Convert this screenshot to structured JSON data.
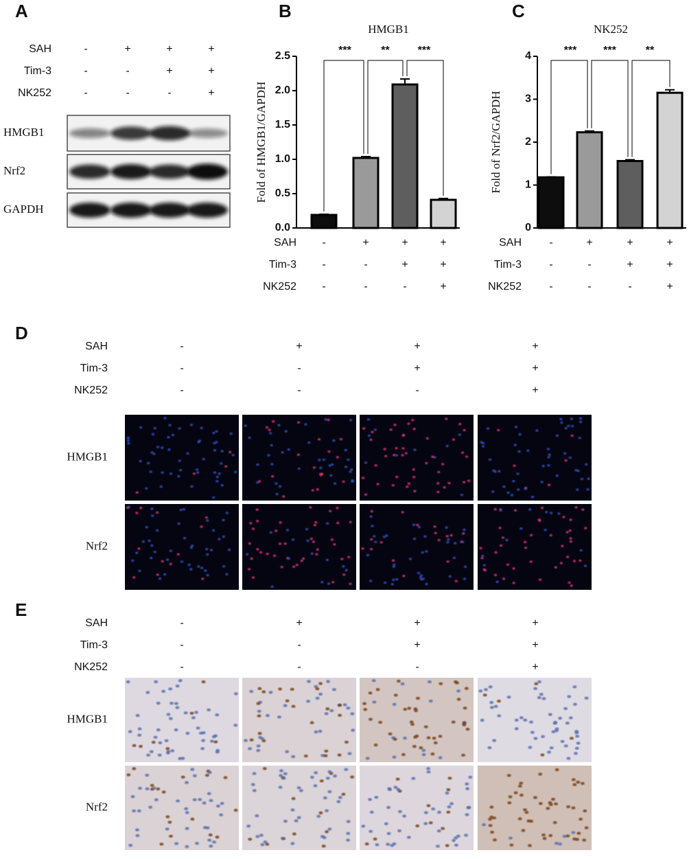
{
  "panel_a": {
    "label": "A",
    "conditions": [
      {
        "name": "SAH",
        "signs": [
          "-",
          "+",
          "+",
          "+"
        ]
      },
      {
        "name": "Tim-3",
        "signs": [
          "-",
          "-",
          "+",
          "+"
        ]
      },
      {
        "name": "NK252",
        "signs": [
          "-",
          "-",
          "-",
          "+"
        ]
      }
    ],
    "bands": [
      "HMGB1",
      "Nrf2",
      "GAPDH"
    ]
  },
  "chart_data": [
    {
      "type": "bar",
      "panel_label": "B",
      "title": "HMGB1",
      "y_label": "Fold of HMGB1/GAPDH",
      "values": [
        0.19,
        1.02,
        2.09,
        0.41
      ],
      "errors": [
        0.01,
        0.02,
        0.08,
        0.02
      ],
      "colors": [
        "#0d0d0d",
        "#9a9a9a",
        "#5e5e5e",
        "#d3d3d3"
      ],
      "ylim": [
        0,
        2.5
      ],
      "yticks": [
        {
          "value": 0,
          "label": "0.0"
        },
        0.5,
        {
          "value": 1,
          "label": "1.0"
        },
        1.5,
        {
          "value": 2,
          "label": "2.0"
        },
        2.5
      ],
      "significance": [
        "***",
        "**",
        "***"
      ],
      "conditions": [
        {
          "name": "SAH",
          "signs": [
            "-",
            "+",
            "+",
            "+"
          ]
        },
        {
          "name": "Tim-3",
          "signs": [
            "-",
            "-",
            "+",
            "+"
          ]
        },
        {
          "name": "NK252",
          "signs": [
            "-",
            "-",
            "-",
            "+"
          ]
        }
      ]
    },
    {
      "type": "bar",
      "panel_label": "C",
      "title": "NK252",
      "y_label": "Fold of Nrf2/GAPDH",
      "values": [
        1.18,
        2.23,
        1.56,
        3.15
      ],
      "errors": [
        0.01,
        0.03,
        0.03,
        0.07
      ],
      "colors": [
        "#0d0d0d",
        "#9a9a9a",
        "#5e5e5e",
        "#d3d3d3"
      ],
      "ylim": [
        0,
        4
      ],
      "yticks": [
        0,
        1,
        2,
        3,
        4
      ],
      "significance": [
        "***",
        "***",
        "**"
      ],
      "conditions": [
        {
          "name": "SAH",
          "signs": [
            "-",
            "+",
            "+",
            "+"
          ]
        },
        {
          "name": "Tim-3",
          "signs": [
            "-",
            "-",
            "+",
            "+"
          ]
        },
        {
          "name": "NK252",
          "signs": [
            "-",
            "-",
            "-",
            "+"
          ]
        }
      ]
    }
  ],
  "panel_d": {
    "label": "D",
    "conditions": [
      {
        "name": "SAH",
        "signs": [
          "-",
          "+",
          "+",
          "+"
        ]
      },
      {
        "name": "Tim-3",
        "signs": [
          "-",
          "-",
          "+",
          "+"
        ]
      },
      {
        "name": "NK252",
        "signs": [
          "-",
          "-",
          "-",
          "+"
        ]
      }
    ],
    "rows": [
      "HMGB1",
      "Nrf2"
    ]
  },
  "panel_e": {
    "label": "E",
    "conditions": [
      {
        "name": "SAH",
        "signs": [
          "-",
          "+",
          "+",
          "+"
        ]
      },
      {
        "name": "Tim-3",
        "signs": [
          "-",
          "-",
          "+",
          "+"
        ]
      },
      {
        "name": "NK252",
        "signs": [
          "-",
          "-",
          "-",
          "+"
        ]
      }
    ],
    "rows": [
      "HMGB1",
      "Nrf2"
    ]
  }
}
